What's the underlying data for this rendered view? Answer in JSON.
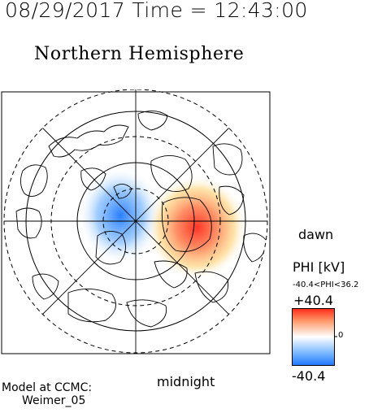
{
  "header": {
    "timestamp": "08/29/2017 Time = 12:43:00",
    "title": "Northern Hemisphere"
  },
  "orientation": {
    "right": "dawn",
    "bottom": "midnight"
  },
  "colorbar": {
    "title": "PHI [kV]",
    "range_text": "-40.4<PHI<36.2",
    "max_label": "+40.4",
    "zero_label": "0",
    "min_label": "-40.4",
    "colors": {
      "negative": "#1e78ff",
      "mid": "#ffffff",
      "positive": "#ff2a1a"
    }
  },
  "potential": {
    "min_kv": -40.4,
    "max_kv": 36.2
  },
  "credits": {
    "line1": "Model at CCMC:",
    "line2": "Weimer_05"
  }
}
